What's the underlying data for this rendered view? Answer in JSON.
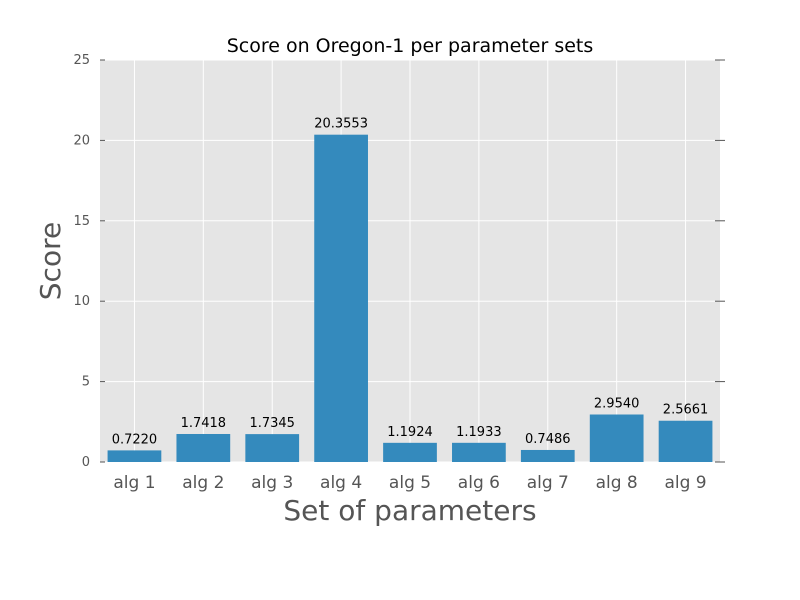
{
  "chart_data": {
    "type": "bar",
    "title": "Score on Oregon-1 per parameter sets",
    "xlabel": "Set of parameters",
    "ylabel": "Score",
    "categories": [
      "alg 1",
      "alg 2",
      "alg 3",
      "alg 4",
      "alg 5",
      "alg 6",
      "alg 7",
      "alg 8",
      "alg 9"
    ],
    "values": [
      0.722,
      1.7418,
      1.7345,
      20.3553,
      1.1924,
      1.1933,
      0.7486,
      2.954,
      2.5661
    ],
    "value_labels": [
      "0.7220",
      "1.7418",
      "1.7345",
      "20.3553",
      "1.1924",
      "1.1933",
      "0.7486",
      "2.9540",
      "2.5661"
    ],
    "ylim": [
      0,
      25
    ],
    "yticks": [
      0,
      5,
      10,
      15,
      20,
      25
    ],
    "ytick_labels": [
      "0",
      "5",
      "10",
      "15",
      "20",
      "25"
    ],
    "grid": true,
    "colors": {
      "bar": "#348abd",
      "plot_background": "#e5e5e5",
      "grid": "#ffffff"
    }
  }
}
